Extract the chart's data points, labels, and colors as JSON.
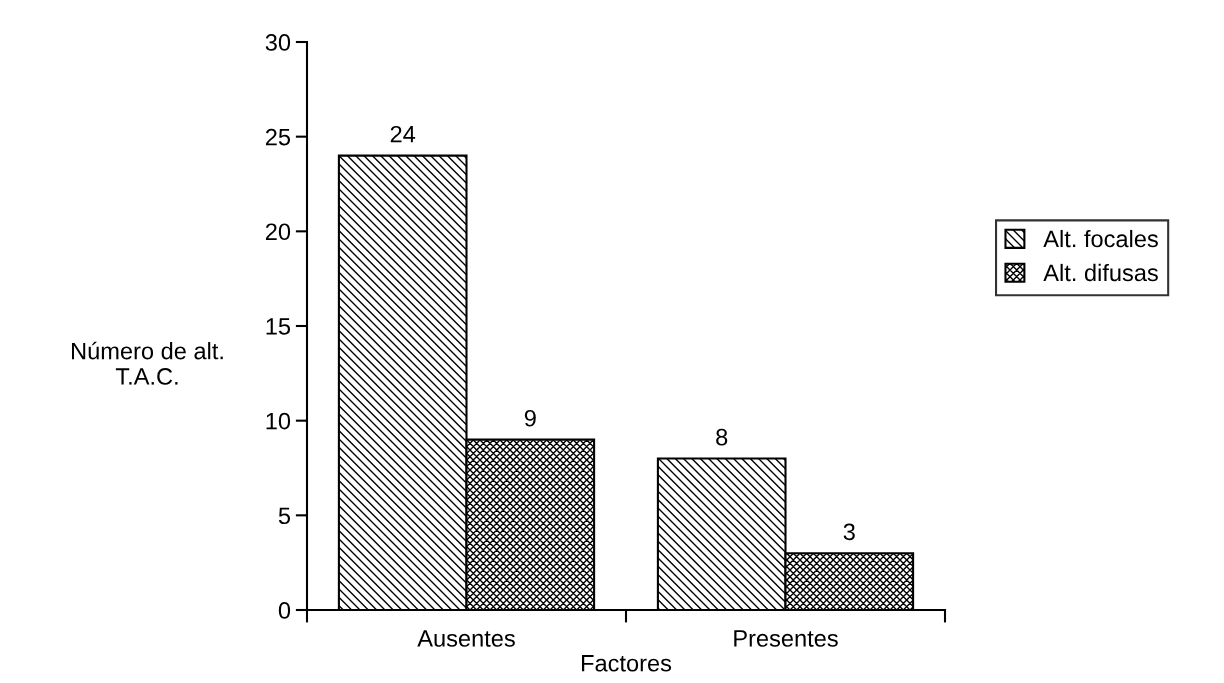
{
  "chart_data": {
    "type": "bar",
    "xlabel": "Factores",
    "ylabel": "Número de alt.\nT.A.C.",
    "categories": [
      "Ausentes",
      "Presentes"
    ],
    "series": [
      {
        "name": "Alt. focales",
        "color": "#000000",
        "values": [
          24,
          8
        ]
      },
      {
        "name": "Alt. difusas",
        "color": "#000000",
        "values": [
          9,
          3
        ]
      }
    ],
    "ylim": [
      0,
      30
    ],
    "yticks": [
      0,
      5,
      10,
      15,
      20,
      25,
      30
    ],
    "grid": false,
    "legend": "right",
    "data_labels": true
  }
}
